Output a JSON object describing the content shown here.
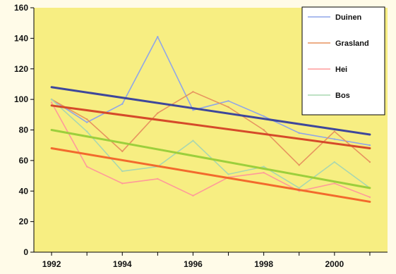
{
  "chart_data": {
    "type": "line",
    "title": "",
    "xlabel": "",
    "ylabel": "",
    "xlim": [
      1991.5,
      2001.5
    ],
    "ylim": [
      0,
      160
    ],
    "x_ticks": [
      1992,
      1994,
      1996,
      1998,
      2000
    ],
    "x_tick_labels": [
      "1992",
      "1994",
      "1996",
      "1998",
      "2000"
    ],
    "y_ticks": [
      0,
      20,
      40,
      60,
      80,
      100,
      120,
      140,
      160
    ],
    "y_tick_labels": [
      "0",
      "20",
      "40",
      "60",
      "80",
      "100",
      "120",
      "140",
      "160"
    ],
    "grid": false,
    "legend_position": "top-right",
    "plot_background": "#f7ee82",
    "series": [
      {
        "name": "Duinen",
        "color": "#8fa6e8",
        "x": [
          1992,
          1993,
          1994,
          1995,
          1996,
          1997,
          1998,
          1999,
          2000,
          2001
        ],
        "values": [
          100,
          85,
          97,
          141,
          93,
          99,
          89,
          78,
          74,
          70
        ]
      },
      {
        "name": "Grasland",
        "color": "#e7945f",
        "x": [
          1992,
          1993,
          1994,
          1995,
          1996,
          1997,
          1998,
          1999,
          2000,
          2001
        ],
        "values": [
          100,
          87,
          66,
          91,
          105,
          95,
          80,
          57,
          79,
          59
        ]
      },
      {
        "name": "Hei",
        "color": "#ff9a9a",
        "x": [
          1992,
          1993,
          1994,
          1995,
          1996,
          1997,
          1998,
          1999,
          2000,
          2001
        ],
        "values": [
          98,
          56,
          45,
          48,
          37,
          49,
          52,
          40,
          45,
          36
        ]
      },
      {
        "name": "Bos",
        "color": "#a9d7b0",
        "x": [
          1992,
          1993,
          1994,
          1995,
          1996,
          1997,
          1998,
          1999,
          2000,
          2001
        ],
        "values": [
          100,
          79,
          53,
          56,
          73,
          51,
          56,
          42,
          59,
          42
        ]
      }
    ],
    "trend_lines": [
      {
        "color": "#3e479b",
        "x": [
          1992,
          2001
        ],
        "values": [
          108,
          77
        ]
      },
      {
        "color": "#d54a2a",
        "x": [
          1992,
          2001
        ],
        "values": [
          96,
          68
        ]
      },
      {
        "color": "#9ccf3c",
        "x": [
          1992,
          2001
        ],
        "values": [
          80,
          42
        ]
      },
      {
        "color": "#f26a2d",
        "x": [
          1992,
          2001
        ],
        "values": [
          68,
          33
        ]
      }
    ]
  }
}
